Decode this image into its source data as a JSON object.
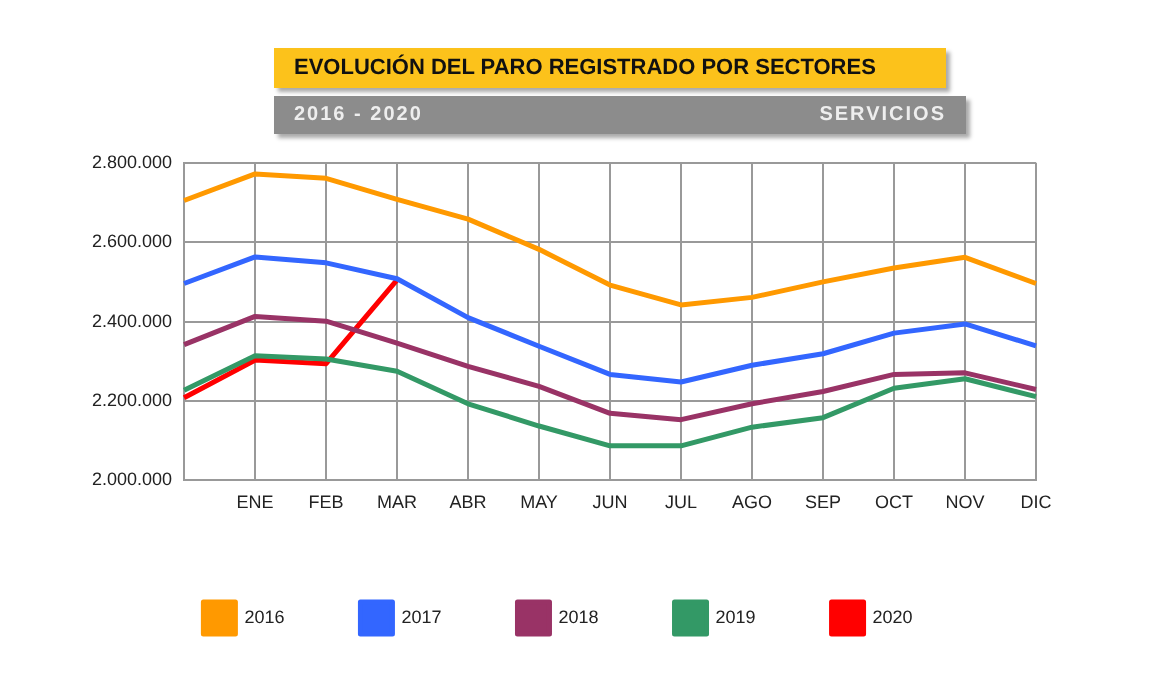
{
  "chart_data": {
    "type": "line",
    "title": "EVOLUCIÓN DEL PARO REGISTRADO POR SECTORES",
    "subtitle": "2016 - 2020",
    "annotations": [
      "SERVICIOS"
    ],
    "categories": [
      null,
      "ENE",
      "FEB",
      "MAR",
      "ABR",
      "MAY",
      "JUN",
      "JUL",
      "AGO",
      "SEP",
      "OCT",
      "NOV",
      "DIC"
    ],
    "series": [
      {
        "name": "2016",
        "color": "#ff9900",
        "values": [
          2705000,
          2772000,
          2761000,
          2708000,
          2658000,
          2582000,
          2492000,
          2442000,
          2461000,
          2500000,
          2535000,
          2562000,
          2496000
        ]
      },
      {
        "name": "2017",
        "color": "#3366ff",
        "values": [
          2496000,
          2563000,
          2548000,
          2508000,
          2410000,
          2338000,
          2267000,
          2248000,
          2290000,
          2319000,
          2371000,
          2394000,
          2339000
        ]
      },
      {
        "name": "2018",
        "color": "#993366",
        "values": [
          2342000,
          2413000,
          2401000,
          2346000,
          2287000,
          2237000,
          2169000,
          2153000,
          2193000,
          2224000,
          2267000,
          2271000,
          2229000
        ]
      },
      {
        "name": "2019",
        "color": "#339966",
        "values": [
          2227000,
          2314000,
          2306000,
          2275000,
          2193000,
          2137000,
          2087000,
          2087000,
          2134000,
          2158000,
          2232000,
          2256000,
          2211000
        ]
      },
      {
        "name": "2020",
        "color": "#ff0000",
        "values": [
          2208000,
          2303000,
          2294000,
          2505000,
          null,
          null,
          null,
          null,
          null,
          null,
          null,
          null,
          null
        ]
      }
    ],
    "ylim": [
      2000000,
      2800000
    ],
    "yticks": [
      {
        "value": 2000000,
        "label": "2.000.000"
      },
      {
        "value": 2200000,
        "label": "2.200.000"
      },
      {
        "value": 2400000,
        "label": "2.400.000"
      },
      {
        "value": 2600000,
        "label": "2.600.000"
      },
      {
        "value": 2800000,
        "label": "2.800.000"
      }
    ],
    "grid": true,
    "legend": "bottom",
    "marker": "none",
    "line_style": "solid"
  }
}
